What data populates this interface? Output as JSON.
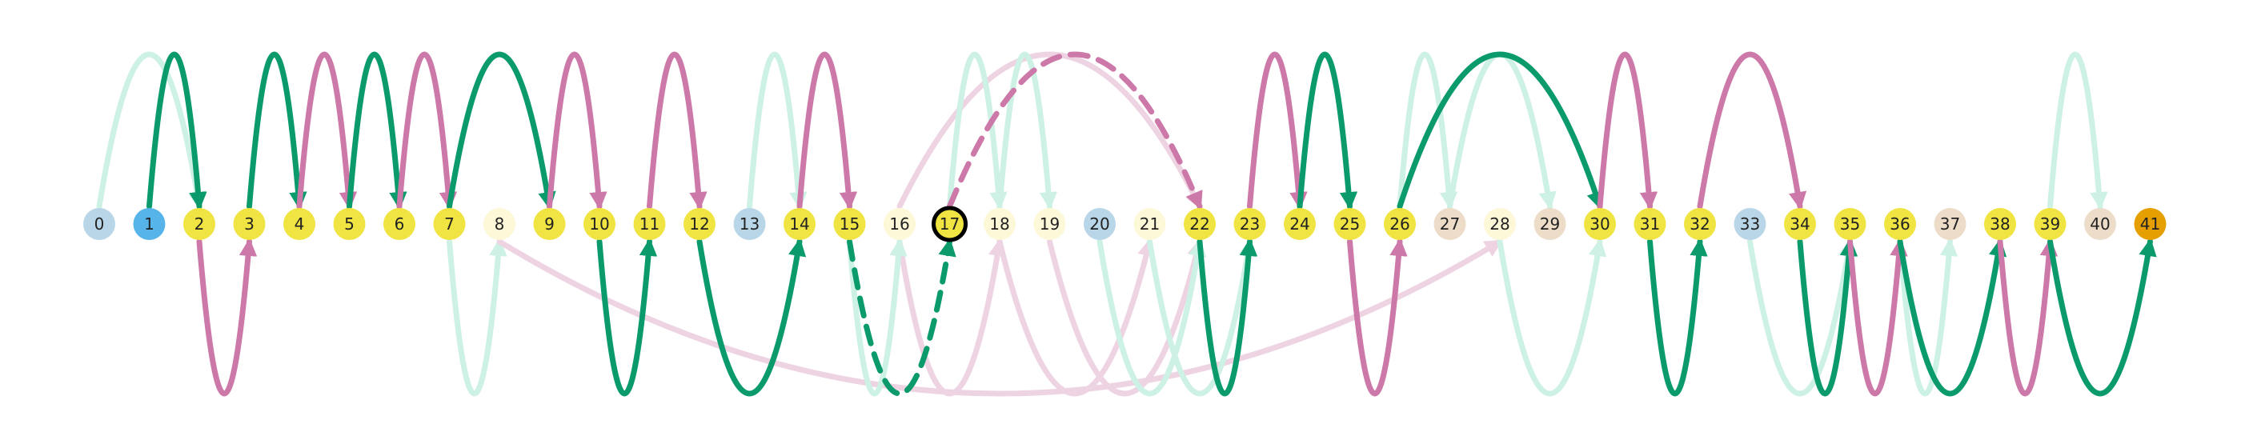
{
  "colors": {
    "green": "#0a9a6c",
    "green_light": "#cdf1e4",
    "pink": "#cc78a8",
    "pink_light": "#eed4e2",
    "node_yellow": "#f0e442",
    "node_pale_yellow": "#fdf8d8",
    "node_light_blue": "#b9d6e8",
    "node_blue": "#56b4e9",
    "node_beige": "#ecdcc8",
    "node_orange": "#e69f00",
    "highlight_stroke": "#000000"
  },
  "nodes": [
    {
      "label": "0",
      "color": "node_light_blue"
    },
    {
      "label": "1",
      "color": "node_blue"
    },
    {
      "label": "2",
      "color": "node_yellow"
    },
    {
      "label": "3",
      "color": "node_yellow"
    },
    {
      "label": "4",
      "color": "node_yellow"
    },
    {
      "label": "5",
      "color": "node_yellow"
    },
    {
      "label": "6",
      "color": "node_yellow"
    },
    {
      "label": "7",
      "color": "node_yellow"
    },
    {
      "label": "8",
      "color": "node_pale_yellow"
    },
    {
      "label": "9",
      "color": "node_yellow"
    },
    {
      "label": "10",
      "color": "node_yellow"
    },
    {
      "label": "11",
      "color": "node_yellow"
    },
    {
      "label": "12",
      "color": "node_yellow"
    },
    {
      "label": "13",
      "color": "node_light_blue"
    },
    {
      "label": "14",
      "color": "node_yellow"
    },
    {
      "label": "15",
      "color": "node_yellow"
    },
    {
      "label": "16",
      "color": "node_pale_yellow"
    },
    {
      "label": "17",
      "color": "node_yellow",
      "highlighted": true
    },
    {
      "label": "18",
      "color": "node_pale_yellow"
    },
    {
      "label": "19",
      "color": "node_pale_yellow"
    },
    {
      "label": "20",
      "color": "node_light_blue"
    },
    {
      "label": "21",
      "color": "node_pale_yellow"
    },
    {
      "label": "22",
      "color": "node_yellow"
    },
    {
      "label": "23",
      "color": "node_yellow"
    },
    {
      "label": "24",
      "color": "node_yellow"
    },
    {
      "label": "25",
      "color": "node_yellow"
    },
    {
      "label": "26",
      "color": "node_yellow"
    },
    {
      "label": "27",
      "color": "node_beige"
    },
    {
      "label": "28",
      "color": "node_pale_yellow"
    },
    {
      "label": "29",
      "color": "node_beige"
    },
    {
      "label": "30",
      "color": "node_yellow"
    },
    {
      "label": "31",
      "color": "node_yellow"
    },
    {
      "label": "32",
      "color": "node_yellow"
    },
    {
      "label": "33",
      "color": "node_light_blue"
    },
    {
      "label": "34",
      "color": "node_yellow"
    },
    {
      "label": "35",
      "color": "node_yellow"
    },
    {
      "label": "36",
      "color": "node_yellow"
    },
    {
      "label": "37",
      "color": "node_beige"
    },
    {
      "label": "38",
      "color": "node_yellow"
    },
    {
      "label": "39",
      "color": "node_yellow"
    },
    {
      "label": "40",
      "color": "node_beige"
    },
    {
      "label": "41",
      "color": "node_orange"
    }
  ],
  "edges": [
    {
      "from": 0,
      "to": 2,
      "side": "above",
      "color": "green_light",
      "style": "solid"
    },
    {
      "from": 1,
      "to": 2,
      "side": "above",
      "color": "green",
      "style": "solid"
    },
    {
      "from": 2,
      "to": 3,
      "side": "below",
      "color": "pink",
      "style": "solid"
    },
    {
      "from": 3,
      "to": 4,
      "side": "above",
      "color": "green",
      "style": "solid"
    },
    {
      "from": 4,
      "to": 5,
      "side": "above",
      "color": "pink",
      "style": "solid"
    },
    {
      "from": 5,
      "to": 6,
      "side": "above",
      "color": "green",
      "style": "solid"
    },
    {
      "from": 6,
      "to": 7,
      "side": "above",
      "color": "pink",
      "style": "solid"
    },
    {
      "from": 7,
      "to": 9,
      "side": "above",
      "color": "green",
      "style": "solid"
    },
    {
      "from": 7,
      "to": 8,
      "side": "below",
      "color": "green_light",
      "style": "solid"
    },
    {
      "from": 9,
      "to": 10,
      "side": "above",
      "color": "pink",
      "style": "solid"
    },
    {
      "from": 10,
      "to": 11,
      "side": "below",
      "color": "green",
      "style": "solid"
    },
    {
      "from": 11,
      "to": 12,
      "side": "above",
      "color": "pink",
      "style": "solid"
    },
    {
      "from": 12,
      "to": 14,
      "side": "below",
      "color": "green",
      "style": "solid"
    },
    {
      "from": 13,
      "to": 14,
      "side": "above",
      "color": "green_light",
      "style": "solid"
    },
    {
      "from": 14,
      "to": 15,
      "side": "above",
      "color": "pink",
      "style": "solid"
    },
    {
      "from": 15,
      "to": 17,
      "side": "below",
      "color": "green",
      "style": "dashed"
    },
    {
      "from": 17,
      "to": 22,
      "side": "above",
      "color": "pink",
      "style": "dashed"
    },
    {
      "from": 8,
      "to": 28,
      "side": "below",
      "color": "pink_light",
      "style": "solid"
    },
    {
      "from": 16,
      "to": 22,
      "side": "above",
      "color": "pink_light",
      "style": "solid"
    },
    {
      "from": 16,
      "to": 18,
      "side": "below",
      "color": "pink_light",
      "style": "solid"
    },
    {
      "from": 19,
      "to": 22,
      "side": "below",
      "color": "pink_light",
      "style": "solid"
    },
    {
      "from": 18,
      "to": 21,
      "side": "below",
      "color": "pink_light",
      "style": "solid"
    },
    {
      "from": 18,
      "to": 19,
      "side": "above",
      "color": "green_light",
      "style": "solid"
    },
    {
      "from": 17,
      "to": 18,
      "side": "above",
      "color": "green_light",
      "style": "solid"
    },
    {
      "from": 15,
      "to": 16,
      "side": "below",
      "color": "green_light",
      "style": "solid"
    },
    {
      "from": 20,
      "to": 22,
      "side": "below",
      "color": "green_light",
      "style": "solid"
    },
    {
      "from": 21,
      "to": 23,
      "side": "below",
      "color": "green_light",
      "style": "solid"
    },
    {
      "from": 22,
      "to": 23,
      "side": "below",
      "color": "green",
      "style": "solid"
    },
    {
      "from": 23,
      "to": 24,
      "side": "above",
      "color": "pink",
      "style": "solid"
    },
    {
      "from": 24,
      "to": 25,
      "side": "above",
      "color": "green",
      "style": "solid"
    },
    {
      "from": 25,
      "to": 26,
      "side": "below",
      "color": "pink",
      "style": "solid"
    },
    {
      "from": 26,
      "to": 30,
      "side": "above",
      "color": "green",
      "style": "solid"
    },
    {
      "from": 26,
      "to": 27,
      "side": "above",
      "color": "green_light",
      "style": "solid"
    },
    {
      "from": 27,
      "to": 29,
      "side": "above",
      "color": "green_light",
      "style": "solid"
    },
    {
      "from": 28,
      "to": 30,
      "side": "below",
      "color": "green_light",
      "style": "solid"
    },
    {
      "from": 30,
      "to": 31,
      "side": "above",
      "color": "pink",
      "style": "solid"
    },
    {
      "from": 31,
      "to": 32,
      "side": "below",
      "color": "green",
      "style": "solid"
    },
    {
      "from": 32,
      "to": 34,
      "side": "above",
      "color": "pink",
      "style": "solid"
    },
    {
      "from": 33,
      "to": 35,
      "side": "below",
      "color": "green_light",
      "style": "solid"
    },
    {
      "from": 34,
      "to": 35,
      "side": "below",
      "color": "green",
      "style": "solid"
    },
    {
      "from": 35,
      "to": 36,
      "side": "below",
      "color": "pink",
      "style": "solid"
    },
    {
      "from": 36,
      "to": 38,
      "side": "below",
      "color": "green",
      "style": "solid"
    },
    {
      "from": 36,
      "to": 37,
      "side": "below",
      "color": "green_light",
      "style": "solid"
    },
    {
      "from": 38,
      "to": 39,
      "side": "below",
      "color": "pink",
      "style": "solid"
    },
    {
      "from": 39,
      "to": 41,
      "side": "below",
      "color": "green",
      "style": "solid"
    },
    {
      "from": 39,
      "to": 40,
      "side": "above",
      "color": "green_light",
      "style": "solid"
    }
  ]
}
